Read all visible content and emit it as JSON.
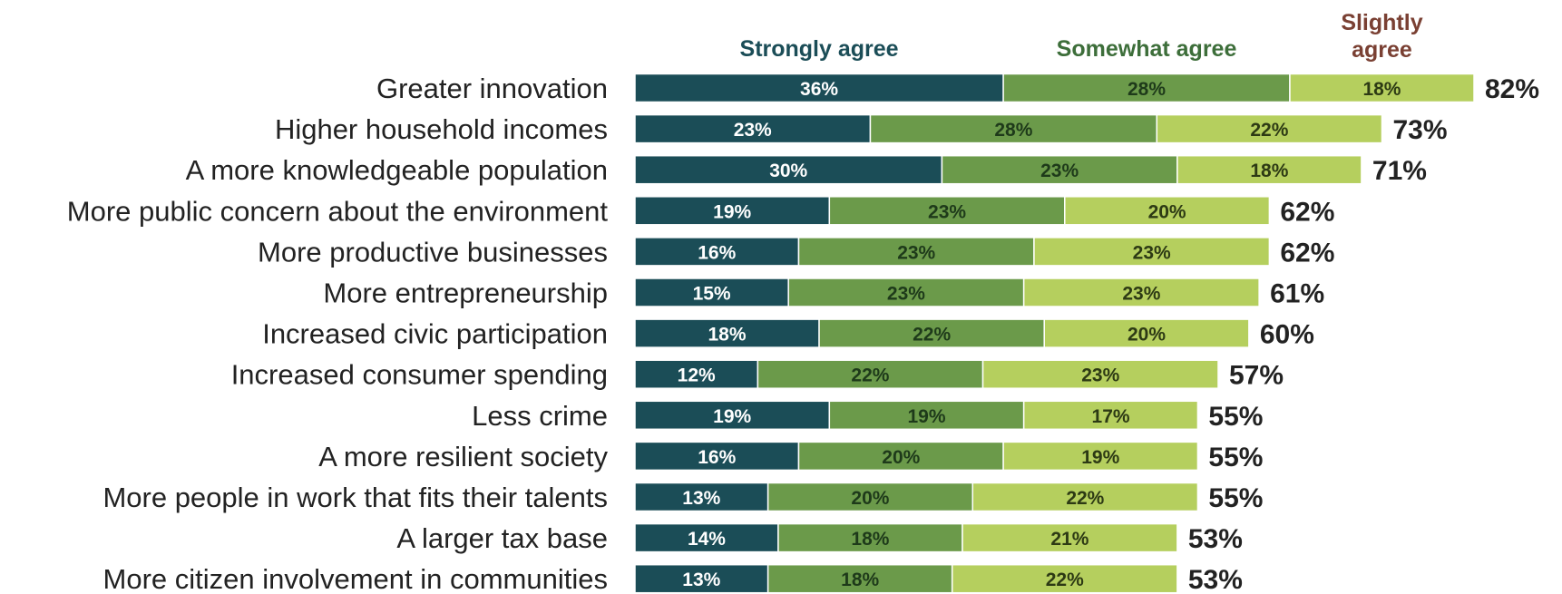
{
  "chart_data": {
    "type": "bar",
    "orientation": "horizontal",
    "stacked": true,
    "categories": [
      "Greater innovation",
      "Higher household incomes",
      "A more knowledgeable population",
      "More public concern about the environment",
      "More productive businesses",
      "More entrepreneurship",
      "Increased civic participation",
      "Increased consumer spending",
      "Less crime",
      "A more resilient society",
      "More people in work that fits their talents",
      "A larger tax base",
      "More citizen involvement in communities"
    ],
    "series": [
      {
        "name": "Strongly agree",
        "color": "#1b4d57",
        "label_color": "#ffffff",
        "legend_color": "#1b4d57",
        "values": [
          36,
          23,
          30,
          19,
          16,
          15,
          18,
          12,
          19,
          16,
          13,
          14,
          13
        ],
        "labels": [
          "36%",
          "23%",
          "30%",
          "19%",
          "16%",
          "15%",
          "18%",
          "12%",
          "19%",
          "16%",
          "13%",
          "14%",
          "13%"
        ]
      },
      {
        "name": "Somewhat agree",
        "color": "#6b9a4a",
        "label_color": "#1e3a1a",
        "legend_color": "#3d6e3a",
        "values": [
          28,
          28,
          23,
          23,
          23,
          23,
          22,
          22,
          19,
          20,
          20,
          18,
          18
        ],
        "labels": [
          "28%",
          "28%",
          "23%",
          "23%",
          "23%",
          "23%",
          "22%",
          "22%",
          "19%",
          "20%",
          "20%",
          "18%",
          "18%"
        ]
      },
      {
        "name": "Slightly agree",
        "name_lines": [
          "Slightly",
          "agree"
        ],
        "color": "#b5cf5e",
        "label_color": "#2d3a14",
        "legend_color": "#7a4033",
        "values": [
          18,
          22,
          18,
          20,
          23,
          23,
          20,
          23,
          17,
          19,
          22,
          21,
          22
        ],
        "labels": [
          "18%",
          "22%",
          "18%",
          "20%",
          "23%",
          "23%",
          "20%",
          "23%",
          "17%",
          "19%",
          "22%",
          "21%",
          "22%"
        ]
      }
    ],
    "totals": [
      82,
      73,
      71,
      62,
      62,
      61,
      60,
      57,
      55,
      55,
      55,
      53,
      53
    ],
    "total_labels": [
      "82%",
      "73%",
      "71%",
      "62%",
      "62%",
      "61%",
      "60%",
      "57%",
      "55%",
      "55%",
      "55%",
      "53%",
      "53%"
    ],
    "xlim": [
      0,
      82
    ],
    "legend_position": "top",
    "grid": false
  }
}
